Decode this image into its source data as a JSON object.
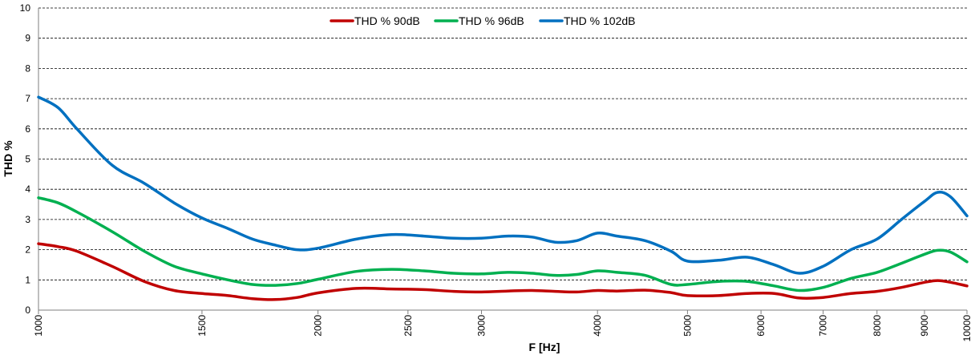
{
  "chart_data": {
    "type": "line",
    "title": "",
    "xlabel": "F [Hz]",
    "ylabel": "THD %",
    "x_scale": "log",
    "xlim": [
      1000,
      10000
    ],
    "ylim": [
      0,
      10
    ],
    "x_ticks": [
      1000,
      1500,
      2000,
      2500,
      3000,
      4000,
      5000,
      6000,
      7000,
      8000,
      9000,
      10000
    ],
    "x_tick_labels": [
      "1000",
      "1500",
      "2000",
      "2500",
      "3000",
      "4000",
      "5000",
      "6000",
      "7000",
      "8000",
      "9000",
      "10000"
    ],
    "y_ticks": [
      0,
      1,
      2,
      3,
      4,
      5,
      6,
      7,
      8,
      9,
      10
    ],
    "y_tick_labels": [
      "0",
      "1",
      "2",
      "3",
      "4",
      "5",
      "6",
      "7",
      "8",
      "9",
      "10"
    ],
    "grid": "horizontal dashed",
    "legend_position": "top-center",
    "series": [
      {
        "name": "THD % 90dB",
        "color": "#c00000",
        "x": [
          1000,
          1050,
          1100,
          1200,
          1300,
          1400,
          1500,
          1600,
          1700,
          1800,
          1900,
          2000,
          2200,
          2400,
          2600,
          2800,
          3000,
          3200,
          3400,
          3600,
          3800,
          4000,
          4200,
          4500,
          4800,
          5000,
          5400,
          5800,
          6200,
          6600,
          7000,
          7500,
          8000,
          8500,
          9000,
          9300,
          9600,
          10000
        ],
        "y": [
          2.2,
          2.1,
          1.95,
          1.45,
          0.95,
          0.65,
          0.55,
          0.48,
          0.38,
          0.35,
          0.42,
          0.57,
          0.72,
          0.7,
          0.68,
          0.62,
          0.6,
          0.63,
          0.65,
          0.62,
          0.6,
          0.65,
          0.63,
          0.66,
          0.58,
          0.48,
          0.48,
          0.55,
          0.55,
          0.4,
          0.42,
          0.55,
          0.62,
          0.75,
          0.92,
          0.98,
          0.92,
          0.8
        ]
      },
      {
        "name": "THD % 96dB",
        "color": "#00b050",
        "x": [
          1000,
          1050,
          1100,
          1200,
          1300,
          1400,
          1500,
          1600,
          1700,
          1800,
          1900,
          2000,
          2200,
          2400,
          2600,
          2800,
          3000,
          3200,
          3400,
          3600,
          3800,
          4000,
          4200,
          4500,
          4800,
          5000,
          5400,
          5800,
          6200,
          6600,
          7000,
          7500,
          8000,
          8500,
          9000,
          9300,
          9600,
          10000
        ],
        "y": [
          3.72,
          3.55,
          3.25,
          2.6,
          1.95,
          1.45,
          1.2,
          1.0,
          0.85,
          0.82,
          0.88,
          1.02,
          1.28,
          1.35,
          1.3,
          1.22,
          1.2,
          1.25,
          1.22,
          1.15,
          1.18,
          1.3,
          1.25,
          1.15,
          0.85,
          0.85,
          0.95,
          0.95,
          0.8,
          0.65,
          0.75,
          1.05,
          1.25,
          1.55,
          1.85,
          1.98,
          1.92,
          1.6
        ]
      },
      {
        "name": "THD % 102dB",
        "color": "#0070c0",
        "x": [
          1000,
          1050,
          1100,
          1200,
          1300,
          1400,
          1500,
          1600,
          1700,
          1800,
          1900,
          2000,
          2200,
          2400,
          2600,
          2800,
          3000,
          3200,
          3400,
          3600,
          3800,
          4000,
          4200,
          4500,
          4800,
          5000,
          5400,
          5800,
          6200,
          6600,
          7000,
          7500,
          8000,
          8500,
          9000,
          9300,
          9600,
          10000
        ],
        "y": [
          7.05,
          6.7,
          6.0,
          4.8,
          4.2,
          3.55,
          3.05,
          2.7,
          2.35,
          2.15,
          2.0,
          2.05,
          2.35,
          2.5,
          2.45,
          2.38,
          2.38,
          2.45,
          2.42,
          2.25,
          2.3,
          2.55,
          2.45,
          2.3,
          1.95,
          1.62,
          1.65,
          1.75,
          1.5,
          1.22,
          1.45,
          2.0,
          2.35,
          3.0,
          3.6,
          3.9,
          3.75,
          3.12
        ]
      }
    ]
  }
}
